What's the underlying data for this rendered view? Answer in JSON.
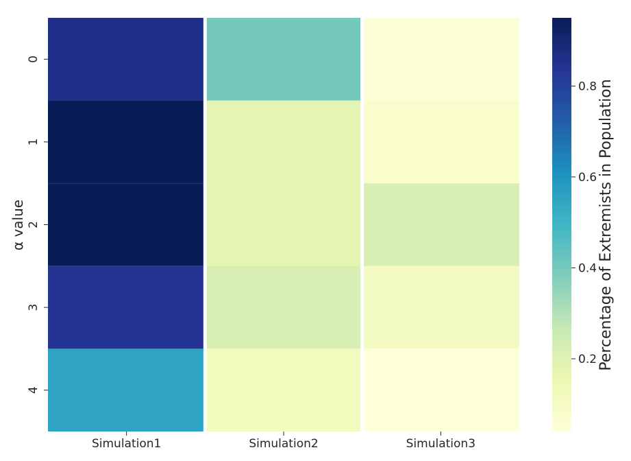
{
  "chart_data": {
    "type": "heatmap",
    "title": "",
    "xlabel": "",
    "ylabel": "α value",
    "x_categories": [
      "Simulation1",
      "Simulation2",
      "Simulation3"
    ],
    "y_categories": [
      "0",
      "1",
      "2",
      "3",
      "4"
    ],
    "values": [
      [
        0.86,
        0.4,
        0.05
      ],
      [
        0.95,
        0.18,
        0.08
      ],
      [
        0.95,
        0.18,
        0.22
      ],
      [
        0.84,
        0.22,
        0.11
      ],
      [
        0.55,
        0.12,
        0.04
      ]
    ],
    "colorbar": {
      "label": "Percentage of Extremists in Population",
      "vmin": 0.04,
      "vmax": 0.95,
      "ticks": [
        0.2,
        0.4,
        0.6,
        0.8
      ],
      "tick_labels": [
        "0.2",
        "0.4",
        "0.6",
        "0.8"
      ],
      "colormap": "YlGnBu"
    },
    "cell_separator_color": "#ffffff"
  }
}
